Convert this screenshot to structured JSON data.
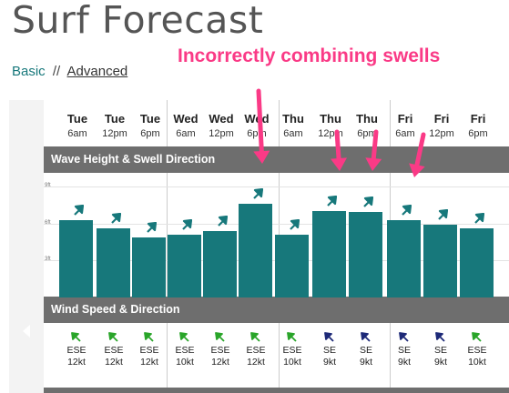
{
  "page": {
    "title": "Surf Forecast",
    "nav": {
      "basic_label": "Basic",
      "separator": "//",
      "advanced_label": "Advanced"
    },
    "annotation": "Incorrectly combining swells"
  },
  "colors": {
    "accent_teal": "#17787b",
    "annotation_pink": "#fa3a86",
    "section_bar": "#6e6e6e",
    "wind_green": "#2aa52a",
    "wind_navy": "#1e2a78"
  },
  "columns": [
    {
      "day": "Tue",
      "time": "6am"
    },
    {
      "day": "Tue",
      "time": "12pm"
    },
    {
      "day": "Tue",
      "time": "6pm"
    },
    {
      "day": "Wed",
      "time": "6am"
    },
    {
      "day": "Wed",
      "time": "12pm"
    },
    {
      "day": "Wed",
      "time": "6pm"
    },
    {
      "day": "Thu",
      "time": "6am"
    },
    {
      "day": "Thu",
      "time": "12pm"
    },
    {
      "day": "Thu",
      "time": "6pm"
    },
    {
      "day": "Fri",
      "time": "6am"
    },
    {
      "day": "Fri",
      "time": "12pm"
    },
    {
      "day": "Fri",
      "time": "6pm"
    }
  ],
  "wave_section": {
    "title": "Wave Height & Swell Direction",
    "y_ticks": [
      "9ft",
      "6ft",
      "3ft"
    ],
    "y_range_ft": [
      0,
      9
    ],
    "wave_height_ft": [
      6.3,
      5.6,
      4.9,
      5.1,
      5.4,
      7.6,
      5.1,
      7.0,
      6.9,
      6.3,
      5.9,
      5.6
    ],
    "swell_icon": "arrow-northeast-icon"
  },
  "wind_section": {
    "title": "Wind Speed & Direction",
    "entries": [
      {
        "dir": "ESE",
        "speed": "12kt",
        "color": "#2aa52a"
      },
      {
        "dir": "ESE",
        "speed": "12kt",
        "color": "#2aa52a"
      },
      {
        "dir": "ESE",
        "speed": "12kt",
        "color": "#2aa52a"
      },
      {
        "dir": "ESE",
        "speed": "10kt",
        "color": "#2aa52a"
      },
      {
        "dir": "ESE",
        "speed": "12kt",
        "color": "#2aa52a"
      },
      {
        "dir": "ESE",
        "speed": "12kt",
        "color": "#2aa52a"
      },
      {
        "dir": "ESE",
        "speed": "10kt",
        "color": "#2aa52a"
      },
      {
        "dir": "SE",
        "speed": "9kt",
        "color": "#1e2a78"
      },
      {
        "dir": "SE",
        "speed": "9kt",
        "color": "#1e2a78"
      },
      {
        "dir": "SE",
        "speed": "9kt",
        "color": "#1e2a78"
      },
      {
        "dir": "SE",
        "speed": "9kt",
        "color": "#1e2a78"
      },
      {
        "dir": "ESE",
        "speed": "10kt",
        "color": "#2aa52a"
      }
    ]
  }
}
